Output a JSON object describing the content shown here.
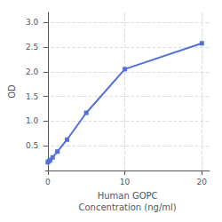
{
  "chart_data": {
    "type": "line",
    "x": [
      0,
      0.156,
      0.313,
      0.625,
      1.25,
      2.5,
      5,
      10,
      20
    ],
    "values": [
      0.168,
      0.191,
      0.212,
      0.265,
      0.384,
      0.625,
      1.168,
      2.052,
      2.575
    ],
    "xlabel": "Human GOPC\nConcentration (ng/ml)",
    "ylabel": "OD",
    "xlim": [
      -0.3,
      21
    ],
    "ylim": [
      0,
      3.2
    ],
    "xticks": [
      0,
      10,
      20
    ],
    "yticks": [
      0.5,
      {
        "value": 1,
        "label": "1.0"
      },
      1.5,
      {
        "value": 2,
        "label": "2.0"
      },
      2.5,
      {
        "value": 3,
        "label": "3.0"
      }
    ],
    "marker": "square",
    "grid": true
  }
}
